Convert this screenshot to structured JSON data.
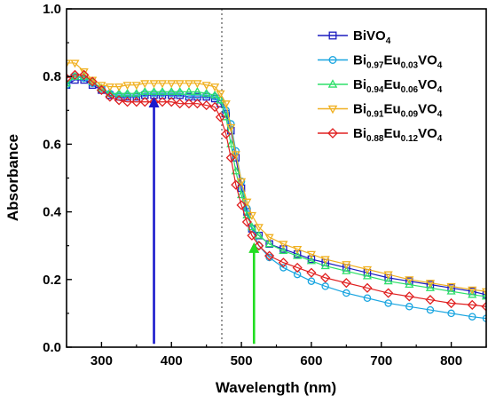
{
  "chart_data": {
    "type": "line",
    "xlabel": "Wavelength (nm)",
    "ylabel": "Absorbance",
    "xlim": [
      250,
      850
    ],
    "ylim": [
      0.0,
      1.0
    ],
    "x_ticks": [
      300,
      400,
      500,
      600,
      700,
      800
    ],
    "y_ticks": [
      0.0,
      0.2,
      0.4,
      0.6,
      0.8,
      1.0
    ],
    "x_tick_labels": [
      "300",
      "400",
      "500",
      "600",
      "700",
      "800"
    ],
    "y_tick_labels": [
      "0.0",
      "0.2",
      "0.4",
      "0.6",
      "0.8",
      "1.0"
    ],
    "legend_position": "top-right",
    "reference_line": {
      "x": 472,
      "style": "dotted",
      "color": "#555555"
    },
    "annotations": [
      {
        "type": "arrow",
        "x": 375,
        "y_from": 0.01,
        "y_to": 0.74,
        "color": "#1a1acc"
      },
      {
        "type": "arrow",
        "x": 518,
        "y_from": 0.01,
        "y_to": 0.31,
        "color": "#22dd22"
      }
    ],
    "series": [
      {
        "name": "BiVO4",
        "label_parts": [
          [
            "Bi",
            ""
          ],
          [
            "VO",
            ""
          ],
          [
            "4",
            "sub"
          ]
        ],
        "color": "#1c1cbf",
        "marker": "square",
        "x": [
          250,
          262,
          275,
          287,
          300,
          312,
          325,
          337,
          350,
          362,
          375,
          387,
          400,
          412,
          425,
          437,
          450,
          462,
          470,
          478,
          485,
          492,
          500,
          508,
          515,
          525,
          540,
          560,
          580,
          600,
          620,
          650,
          680,
          710,
          740,
          770,
          800,
          830,
          850
        ],
        "y": [
          0.775,
          0.79,
          0.79,
          0.775,
          0.76,
          0.745,
          0.74,
          0.74,
          0.74,
          0.745,
          0.745,
          0.745,
          0.745,
          0.745,
          0.74,
          0.74,
          0.74,
          0.735,
          0.72,
          0.69,
          0.64,
          0.56,
          0.47,
          0.4,
          0.35,
          0.33,
          0.305,
          0.29,
          0.275,
          0.26,
          0.25,
          0.235,
          0.22,
          0.205,
          0.195,
          0.185,
          0.175,
          0.165,
          0.155
        ]
      },
      {
        "name": "Bi0.97Eu0.03VO4",
        "label_parts": [
          [
            "Bi",
            ""
          ],
          [
            "0.97",
            "sub"
          ],
          [
            "Eu",
            ""
          ],
          [
            "0.03",
            "sub"
          ],
          [
            "VO",
            ""
          ],
          [
            "4",
            "sub"
          ]
        ],
        "color": "#19a5e0",
        "marker": "circle",
        "x": [
          250,
          262,
          275,
          287,
          300,
          312,
          325,
          337,
          350,
          362,
          375,
          387,
          400,
          412,
          425,
          437,
          450,
          462,
          470,
          478,
          485,
          492,
          500,
          508,
          515,
          525,
          540,
          560,
          580,
          600,
          620,
          650,
          680,
          710,
          740,
          770,
          800,
          830,
          850
        ],
        "y": [
          0.775,
          0.8,
          0.795,
          0.78,
          0.765,
          0.75,
          0.745,
          0.745,
          0.745,
          0.75,
          0.75,
          0.75,
          0.75,
          0.75,
          0.745,
          0.745,
          0.745,
          0.74,
          0.73,
          0.7,
          0.66,
          0.58,
          0.49,
          0.41,
          0.35,
          0.3,
          0.265,
          0.235,
          0.215,
          0.195,
          0.18,
          0.16,
          0.145,
          0.13,
          0.12,
          0.11,
          0.1,
          0.09,
          0.085
        ]
      },
      {
        "name": "Bi0.94Eu0.06VO4",
        "label_parts": [
          [
            "Bi",
            ""
          ],
          [
            "0.94",
            "sub"
          ],
          [
            "Eu",
            ""
          ],
          [
            "0.06",
            "sub"
          ],
          [
            "VO",
            ""
          ],
          [
            "4",
            "sub"
          ]
        ],
        "color": "#2ee06a",
        "marker": "triangle-up",
        "x": [
          250,
          262,
          275,
          287,
          300,
          312,
          325,
          337,
          350,
          362,
          375,
          387,
          400,
          412,
          425,
          437,
          450,
          462,
          470,
          478,
          485,
          492,
          500,
          508,
          515,
          525,
          540,
          560,
          580,
          600,
          620,
          650,
          680,
          710,
          740,
          770,
          800,
          830,
          850
        ],
        "y": [
          0.78,
          0.8,
          0.8,
          0.785,
          0.765,
          0.75,
          0.75,
          0.75,
          0.75,
          0.755,
          0.755,
          0.755,
          0.755,
          0.755,
          0.755,
          0.755,
          0.75,
          0.745,
          0.73,
          0.68,
          0.6,
          0.52,
          0.45,
          0.39,
          0.355,
          0.33,
          0.305,
          0.285,
          0.27,
          0.255,
          0.24,
          0.225,
          0.21,
          0.195,
          0.185,
          0.175,
          0.165,
          0.155,
          0.15
        ]
      },
      {
        "name": "Bi0.91Eu0.09VO4",
        "label_parts": [
          [
            "Bi",
            ""
          ],
          [
            "0.91",
            "sub"
          ],
          [
            "Eu",
            ""
          ],
          [
            "0.09",
            "sub"
          ],
          [
            "VO",
            ""
          ],
          [
            "4",
            "sub"
          ]
        ],
        "color": "#f0b020",
        "marker": "triangle-down",
        "x": [
          250,
          262,
          275,
          287,
          300,
          312,
          325,
          337,
          350,
          362,
          375,
          387,
          400,
          412,
          425,
          437,
          450,
          462,
          470,
          478,
          485,
          492,
          500,
          508,
          515,
          525,
          540,
          560,
          580,
          600,
          620,
          650,
          680,
          710,
          740,
          770,
          800,
          830,
          850
        ],
        "y": [
          0.84,
          0.84,
          0.815,
          0.79,
          0.775,
          0.77,
          0.77,
          0.775,
          0.775,
          0.78,
          0.78,
          0.78,
          0.78,
          0.78,
          0.78,
          0.78,
          0.775,
          0.77,
          0.75,
          0.72,
          0.65,
          0.57,
          0.49,
          0.43,
          0.39,
          0.355,
          0.325,
          0.305,
          0.29,
          0.275,
          0.26,
          0.245,
          0.23,
          0.215,
          0.2,
          0.19,
          0.18,
          0.17,
          0.165
        ]
      },
      {
        "name": "Bi0.88Eu0.12VO4",
        "label_parts": [
          [
            "Bi",
            ""
          ],
          [
            "0.88",
            "sub"
          ],
          [
            "Eu",
            ""
          ],
          [
            "0.12",
            "sub"
          ],
          [
            "VO",
            ""
          ],
          [
            "4",
            "sub"
          ]
        ],
        "color": "#e02020",
        "marker": "diamond",
        "x": [
          250,
          262,
          275,
          287,
          300,
          312,
          325,
          337,
          350,
          362,
          375,
          387,
          400,
          412,
          425,
          437,
          450,
          462,
          470,
          478,
          485,
          492,
          500,
          508,
          515,
          525,
          540,
          560,
          580,
          600,
          620,
          650,
          680,
          710,
          740,
          770,
          800,
          830,
          850
        ],
        "y": [
          0.795,
          0.805,
          0.805,
          0.785,
          0.76,
          0.74,
          0.73,
          0.725,
          0.725,
          0.725,
          0.725,
          0.725,
          0.725,
          0.72,
          0.72,
          0.72,
          0.715,
          0.71,
          0.68,
          0.63,
          0.56,
          0.48,
          0.42,
          0.37,
          0.33,
          0.3,
          0.27,
          0.25,
          0.235,
          0.22,
          0.205,
          0.19,
          0.175,
          0.16,
          0.15,
          0.14,
          0.13,
          0.125,
          0.12
        ]
      }
    ]
  }
}
